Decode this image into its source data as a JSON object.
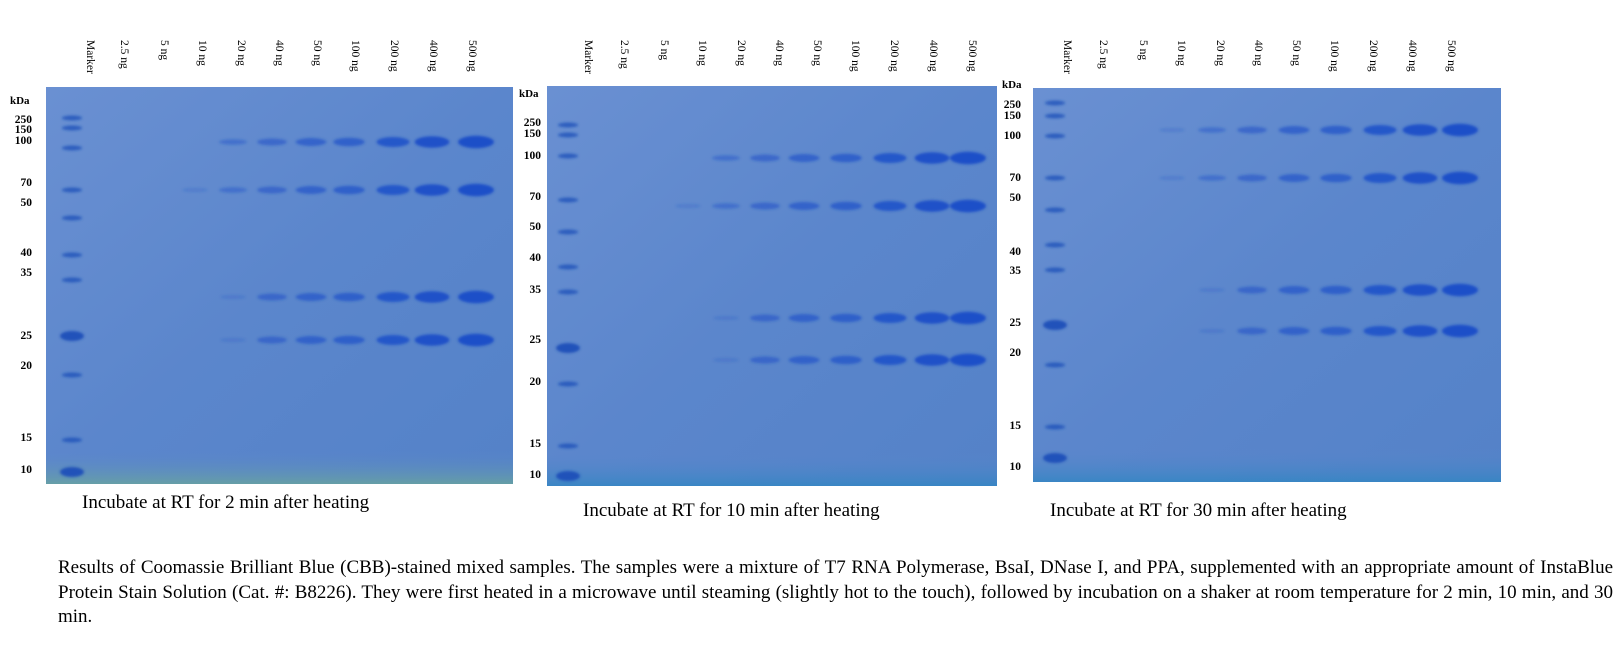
{
  "panels": [
    {
      "lanes": [
        "Marker",
        "2.5 ng",
        "5 ng",
        "10 ng",
        "20 ng",
        "40 ng",
        "50 ng",
        "100 ng",
        "200 ng",
        "400 ng",
        "500 ng"
      ],
      "kda_label": "kDa",
      "markers": [
        "250",
        "150",
        "100",
        "70",
        "50",
        "40",
        "35",
        "25",
        "20",
        "15",
        "10"
      ],
      "caption": "Incubate at RT for 2 min after heating"
    },
    {
      "lanes": [
        "Marker",
        "2.5 ng",
        "5 ng",
        "10 ng",
        "20 ng",
        "40 ng",
        "50 ng",
        "100 ng",
        "200 ng",
        "400 ng",
        "500 ng"
      ],
      "kda_label": "kDa",
      "markers": [
        "250",
        "150",
        "100",
        "70",
        "50",
        "40",
        "35",
        "25",
        "20",
        "15",
        "10"
      ],
      "caption": "Incubate at RT for 10 min after heating"
    },
    {
      "lanes": [
        "Marker",
        "2.5 ng",
        "5 ng",
        "10 ng",
        "20 ng",
        "40 ng",
        "50 ng",
        "100 ng",
        "200 ng",
        "400 ng",
        "500 ng"
      ],
      "kda_label": "kDa",
      "markers": [
        "250",
        "150",
        "100",
        "70",
        "50",
        "40",
        "35",
        "25",
        "20",
        "15",
        "10"
      ],
      "caption": "Incubate at RT for 30 min after heating"
    }
  ],
  "footer": "Results of Coomassie Brilliant Blue (CBB)-stained mixed samples. The samples were a mixture of T7 RNA Polymerase, BsaI, DNase I, and PPA, supplemented with an appropriate amount of InstaBlue Protein Stain Solution (Cat. #: B8226). They were first heated in a microwave until steaming (slightly hot to the touch), followed by incubation on a shaker at room temperature for 2 min, 10 min, and 30 min.",
  "colors": {
    "gel_background": "#5b86cc",
    "band": "#1b4fc8",
    "marker_band": "#1d4fb8"
  }
}
